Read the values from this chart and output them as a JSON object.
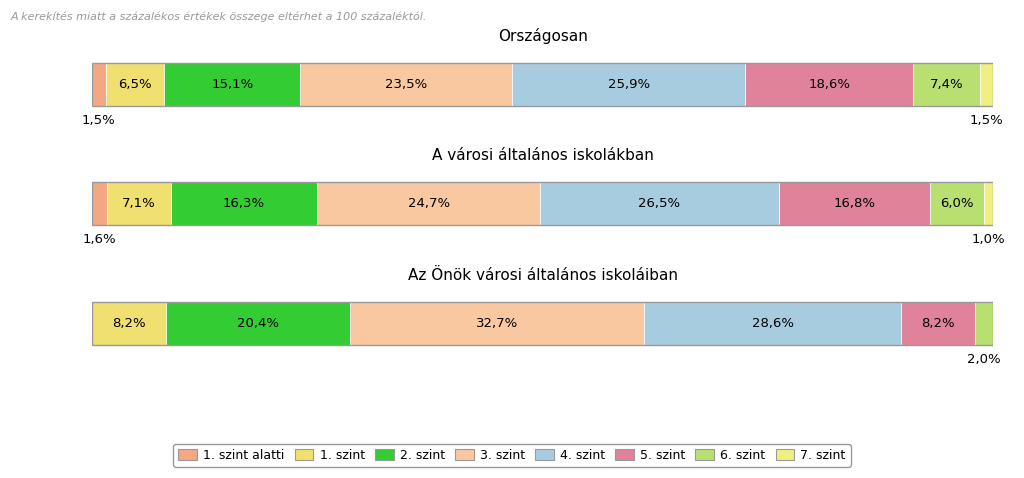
{
  "title_note": "A kerekítés miatt a százalékos értékek összege eltérhet a 100 százaléktól.",
  "bar_titles": [
    "Országosan",
    "A városi általános iskolákban",
    "Az Önök városi általános iskoláiban"
  ],
  "categories": [
    "1. szint alatti",
    "1. szint",
    "2. szint",
    "3. szint",
    "4. szint",
    "5. szint",
    "6. szint",
    "7. szint"
  ],
  "colors": [
    "#F4A882",
    "#F0E070",
    "#33CC33",
    "#F9C8A0",
    "#A8CCDF",
    "#E0829A",
    "#B8E070",
    "#F0F080"
  ],
  "data": [
    [
      1.5,
      6.5,
      15.1,
      23.5,
      25.9,
      18.6,
      7.4,
      1.5
    ],
    [
      1.6,
      7.1,
      16.3,
      24.7,
      26.5,
      16.8,
      6.0,
      1.0
    ],
    [
      0.0,
      8.2,
      20.4,
      32.7,
      28.6,
      8.2,
      2.0,
      0.0
    ]
  ],
  "labels": [
    [
      "1,5%",
      "6,5%",
      "15,1%",
      "23,5%",
      "25,9%",
      "18,6%",
      "7,4%",
      "1,5%"
    ],
    [
      "1,6%",
      "7,1%",
      "16,3%",
      "24,7%",
      "26,5%",
      "16,8%",
      "6,0%",
      "1,0%"
    ],
    [
      "",
      "8,2%",
      "20,4%",
      "32,7%",
      "28,6%",
      "8,2%",
      "2,0%",
      ""
    ]
  ],
  "below_bar_labels": [
    [
      true,
      false,
      false,
      false,
      false,
      false,
      false,
      true
    ],
    [
      true,
      false,
      false,
      false,
      false,
      false,
      false,
      true
    ],
    [
      false,
      false,
      false,
      false,
      false,
      false,
      true,
      false
    ]
  ],
  "background_color": "#FFFFFF",
  "border_color": "#999999",
  "note_color": "#999999",
  "title_fontsize": 11,
  "note_fontsize": 8,
  "label_fontsize": 9.5
}
